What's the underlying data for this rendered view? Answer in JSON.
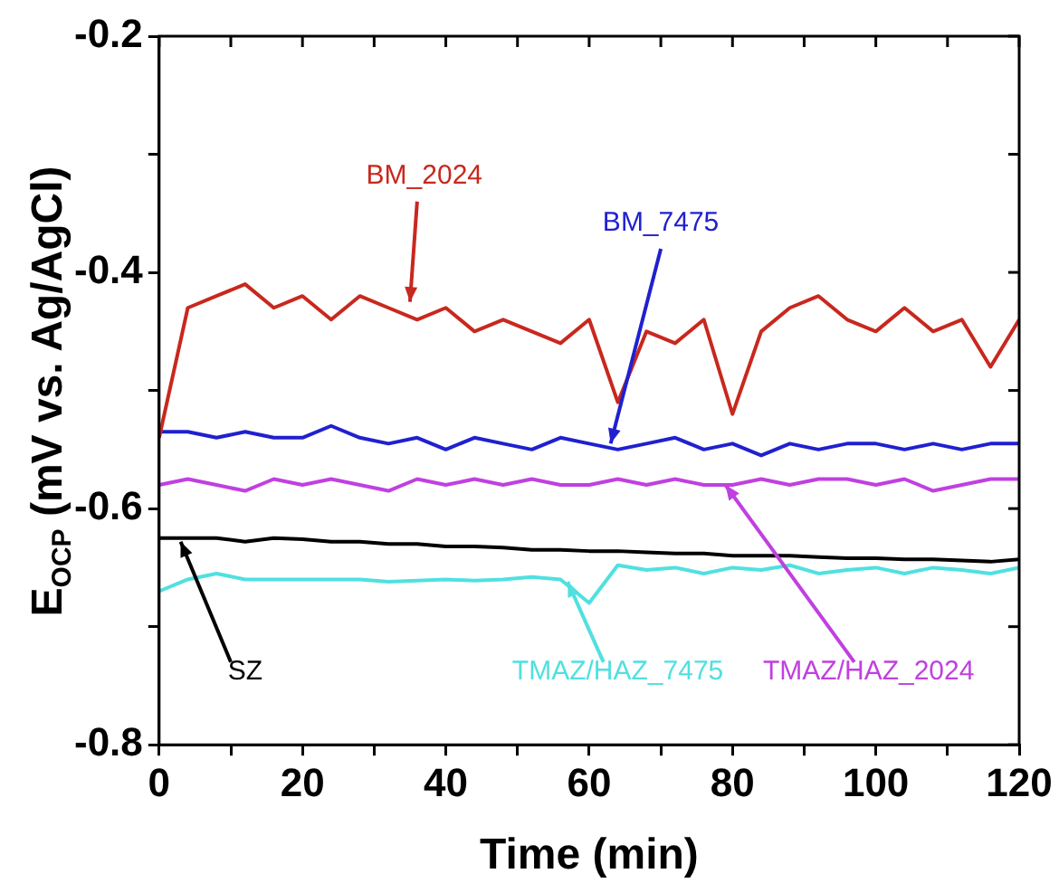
{
  "chart_data": {
    "type": "line",
    "xlabel": "Time (min)",
    "ylabel": "E$_{OCP}$ (mV vs. Ag/AgCl)",
    "x": [
      0,
      4,
      8,
      12,
      16,
      20,
      24,
      28,
      32,
      36,
      40,
      44,
      48,
      52,
      56,
      60,
      64,
      68,
      72,
      76,
      80,
      84,
      88,
      92,
      96,
      100,
      104,
      108,
      112,
      116,
      120
    ],
    "xlim": [
      0,
      120
    ],
    "xticks": [
      0,
      {
        "value": 10,
        "label": null
      },
      20,
      {
        "value": 30,
        "label": null
      },
      40,
      {
        "value": 50,
        "label": null
      },
      60,
      {
        "value": 70,
        "label": null
      },
      80,
      {
        "value": 90,
        "label": null
      },
      100,
      {
        "value": 110,
        "label": null
      },
      120
    ],
    "ylim": [
      -0.8,
      -0.2
    ],
    "yticks": [
      -0.8,
      {
        "value": -0.7,
        "label": null
      },
      -0.6,
      {
        "value": -0.5,
        "label": null
      },
      -0.4,
      {
        "value": -0.3,
        "label": null
      },
      -0.2
    ],
    "grid": false,
    "legend": false,
    "marker": "none",
    "line_style": "solid",
    "series": [
      {
        "name": "BM_2024",
        "color": "#c8281e",
        "values": [
          -0.54,
          -0.43,
          -0.42,
          -0.41,
          -0.43,
          -0.42,
          -0.44,
          -0.42,
          -0.43,
          -0.44,
          -0.43,
          -0.45,
          -0.44,
          -0.45,
          -0.46,
          -0.44,
          -0.51,
          -0.45,
          -0.46,
          -0.44,
          -0.52,
          -0.45,
          -0.43,
          -0.42,
          -0.44,
          -0.45,
          -0.43,
          -0.45,
          -0.44,
          -0.48,
          -0.44
        ]
      },
      {
        "name": "BM_7475",
        "color": "#2020d0",
        "values": [
          -0.535,
          -0.535,
          -0.54,
          -0.535,
          -0.54,
          -0.54,
          -0.53,
          -0.54,
          -0.545,
          -0.54,
          -0.55,
          -0.54,
          -0.545,
          -0.55,
          -0.54,
          -0.545,
          -0.55,
          -0.545,
          -0.54,
          -0.55,
          -0.545,
          -0.555,
          -0.545,
          -0.55,
          -0.545,
          -0.545,
          -0.55,
          -0.545,
          -0.55,
          -0.545,
          -0.545
        ]
      },
      {
        "name": "TMAZ/HAZ_2024",
        "color": "#c040e0",
        "values": [
          -0.58,
          -0.575,
          -0.58,
          -0.585,
          -0.575,
          -0.58,
          -0.575,
          -0.58,
          -0.585,
          -0.575,
          -0.58,
          -0.575,
          -0.58,
          -0.575,
          -0.58,
          -0.58,
          -0.575,
          -0.58,
          -0.575,
          -0.58,
          -0.58,
          -0.575,
          -0.58,
          -0.575,
          -0.575,
          -0.58,
          -0.575,
          -0.585,
          -0.58,
          -0.575,
          -0.575
        ]
      },
      {
        "name": "SZ",
        "color": "#000000",
        "values": [
          -0.625,
          -0.625,
          -0.625,
          -0.628,
          -0.625,
          -0.626,
          -0.628,
          -0.628,
          -0.63,
          -0.63,
          -0.632,
          -0.632,
          -0.633,
          -0.635,
          -0.635,
          -0.636,
          -0.636,
          -0.637,
          -0.638,
          -0.638,
          -0.64,
          -0.64,
          -0.64,
          -0.641,
          -0.642,
          -0.642,
          -0.643,
          -0.643,
          -0.644,
          -0.645,
          -0.643
        ]
      },
      {
        "name": "TMAZ/HAZ_7475",
        "color": "#50e0e0",
        "values": [
          -0.67,
          -0.66,
          -0.655,
          -0.66,
          -0.66,
          -0.66,
          -0.66,
          -0.66,
          -0.662,
          -0.661,
          -0.66,
          -0.661,
          -0.66,
          -0.658,
          -0.66,
          -0.68,
          -0.648,
          -0.652,
          -0.65,
          -0.655,
          -0.65,
          -0.652,
          -0.648,
          -0.655,
          -0.652,
          -0.65,
          -0.655,
          -0.65,
          -0.652,
          -0.655,
          -0.65
        ]
      }
    ]
  }
}
